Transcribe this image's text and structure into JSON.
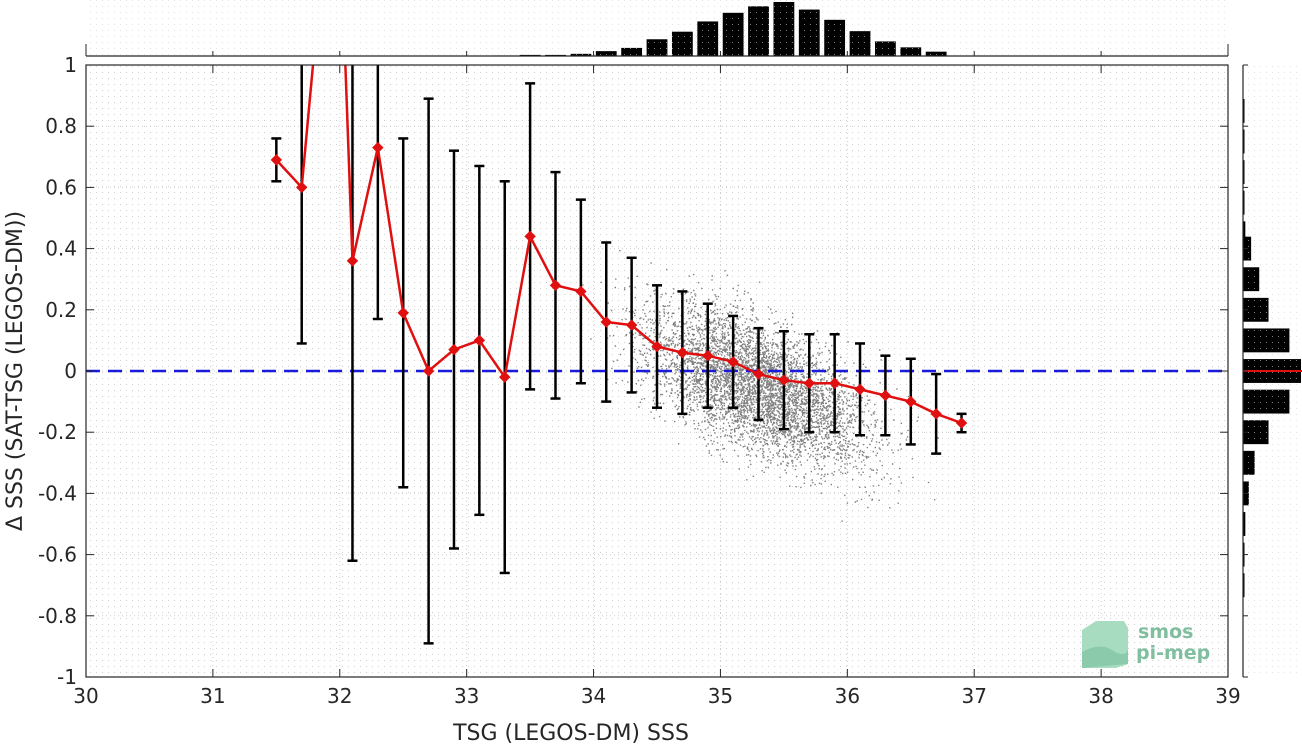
{
  "chart_data": {
    "type": "scatter",
    "xlabel": "TSG (LEGOS-DM) SSS",
    "ylabel": "Δ SSS (SAT-TSG (LEGOS-DM))",
    "xlim": [
      30,
      39
    ],
    "ylim": [
      -1,
      1
    ],
    "xticks": [
      "30",
      "31",
      "32",
      "33",
      "34",
      "35",
      "36",
      "37",
      "38",
      "39"
    ],
    "yticks": [
      "-1",
      "-0.8",
      "-0.6",
      "-0.4",
      "-0.2",
      "0",
      "0.2",
      "0.4",
      "0.6",
      "0.8",
      "1"
    ],
    "grid": true,
    "reference_line": {
      "y": 0,
      "style": "dashed",
      "color": "#1a1adb"
    },
    "binned_mean": {
      "color": "#e01010",
      "x": [
        31.5,
        31.7,
        32.1,
        32.3,
        32.5,
        32.7,
        32.9,
        33.1,
        33.3,
        33.5,
        33.7,
        33.9,
        34.1,
        34.3,
        34.5,
        34.7,
        34.9,
        35.1,
        35.3,
        35.5,
        35.7,
        35.9,
        36.1,
        36.3,
        36.5,
        36.7,
        36.9
      ],
      "y": [
        0.69,
        0.6,
        0.36,
        0.73,
        0.19,
        0.0,
        0.07,
        0.1,
        -0.02,
        0.44,
        0.28,
        0.26,
        0.16,
        0.15,
        0.08,
        0.06,
        0.05,
        0.03,
        -0.01,
        -0.03,
        -0.04,
        -0.04,
        -0.06,
        -0.08,
        -0.1,
        -0.14,
        -0.17
      ],
      "std": [
        0.07,
        0.51,
        0.98,
        0.56,
        0.57,
        0.89,
        0.65,
        0.57,
        0.64,
        0.5,
        0.37,
        0.3,
        0.26,
        0.22,
        0.2,
        0.2,
        0.17,
        0.15,
        0.15,
        0.16,
        0.16,
        0.16,
        0.15,
        0.13,
        0.14,
        0.13,
        0.03
      ],
      "offscale_segment": {
        "x": [
          31.7,
          31.9,
          32.0,
          32.1
        ],
        "y": [
          0.6,
          1.5,
          1.5,
          0.36
        ]
      }
    },
    "scatter_cloud": {
      "color": "#808080",
      "center_x": 35.3,
      "center_y": -0.05
    },
    "top_histogram": {
      "bin_centers": [
        33.3,
        33.5,
        33.7,
        33.9,
        34.1,
        34.3,
        34.5,
        34.7,
        34.9,
        35.1,
        35.3,
        35.5,
        35.7,
        35.9,
        36.1,
        36.3,
        36.5,
        36.7
      ],
      "counts": [
        0.01,
        0.02,
        0.02,
        0.04,
        0.09,
        0.15,
        0.31,
        0.45,
        0.64,
        0.8,
        0.92,
        1.0,
        0.86,
        0.67,
        0.46,
        0.27,
        0.16,
        0.08
      ]
    },
    "right_histogram": {
      "bin_centers": [
        0.85,
        0.75,
        0.65,
        0.55,
        0.45,
        0.4,
        0.3,
        0.2,
        0.1,
        0.0,
        -0.1,
        -0.2,
        -0.3,
        -0.4,
        -0.5,
        -0.6,
        -0.7
      ],
      "counts": [
        0.02,
        0.02,
        0.02,
        0.02,
        0.04,
        0.14,
        0.28,
        0.44,
        0.8,
        1.0,
        0.8,
        0.44,
        0.2,
        0.1,
        0.04,
        0.02,
        0.02
      ],
      "mean_marker_color": "#e01010"
    }
  },
  "logo": {
    "line1": "smos",
    "line2": "pi-mep"
  }
}
